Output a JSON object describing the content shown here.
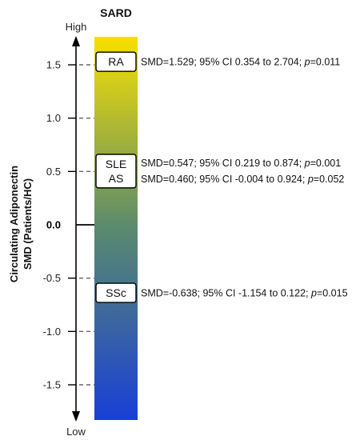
{
  "chart_data": {
    "type": "scatter",
    "title": "SARD",
    "ylabel_lines": [
      "Circulating Adiponectin",
      "SMD (Patients/HC)"
    ],
    "axis_top_label": "High",
    "axis_bottom_label": "Low",
    "ylim": [
      -1.8,
      1.75
    ],
    "yticks": [
      1.5,
      1.0,
      0.5,
      0.0,
      -0.5,
      -1.0,
      -1.5
    ],
    "ytick_labels": [
      "1.5",
      "1.0",
      "0.5",
      "0.0",
      "-0.5",
      "-1.0",
      "-1.5"
    ],
    "gradient": {
      "top_color": "#f7e000",
      "mid_color": "#5a8a6e",
      "bottom_color": "#1a3fd6"
    },
    "groups": [
      {
        "boxes": [
          "RA"
        ],
        "y": 1.529
      },
      {
        "boxes": [
          "SLE",
          "AS"
        ],
        "y": 0.5035
      },
      {
        "boxes": [
          "SSc"
        ],
        "y": -0.638
      }
    ],
    "points": [
      {
        "name": "RA",
        "smd": 1.529,
        "ci_low": 0.354,
        "ci_high": 2.704,
        "p": 0.011,
        "text_prefix": "SMD=1.529; 95% CI 0.354 to 2.704; ",
        "p_label": "p",
        "p_text": "=0.011"
      },
      {
        "name": "SLE",
        "smd": 0.547,
        "ci_low": 0.219,
        "ci_high": 0.874,
        "p": 0.001,
        "text_prefix": "SMD=0.547; 95% CI 0.219 to 0.874; ",
        "p_label": "p",
        "p_text": "=0.001"
      },
      {
        "name": "AS",
        "smd": 0.46,
        "ci_low": -0.004,
        "ci_high": 0.924,
        "p": 0.052,
        "text_prefix": "SMD=0.460; 95% CI -0.004 to 0.924; ",
        "p_label": "p",
        "p_text": "=0.052"
      },
      {
        "name": "SSc",
        "smd": -0.638,
        "ci_low": -1.154,
        "ci_high": 0.122,
        "p": 0.015,
        "text_prefix": "SMD=-0.638; 95% CI -1.154 to 0.122; ",
        "p_label": "p",
        "p_text": "=0.015"
      }
    ]
  }
}
